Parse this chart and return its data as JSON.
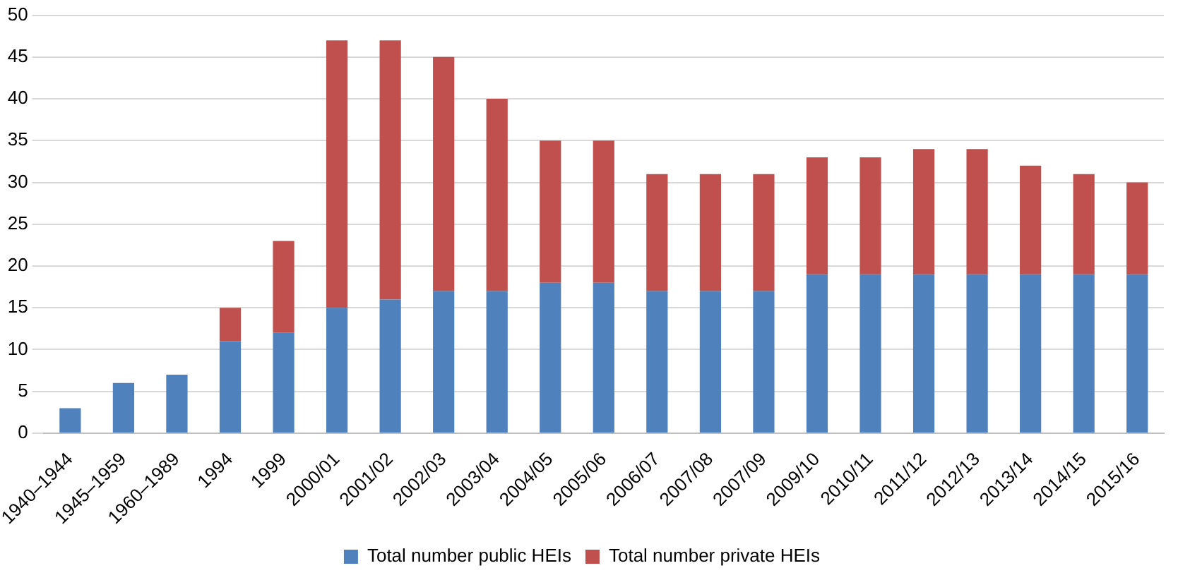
{
  "chart_data": {
    "type": "bar",
    "stacked": true,
    "categories": [
      "1940–1944",
      "1945–1959",
      "1960–1989",
      "1994",
      "1999",
      "2000/01",
      "2001/02",
      "2002/03",
      "2003/04",
      "2004/05",
      "2005/06",
      "2006/07",
      "2007/08",
      "2007/09",
      "2009/10",
      "2010/11",
      "2011/12",
      "2012/13",
      "2013/14",
      "2014/15",
      "2015/16"
    ],
    "series": [
      {
        "name": "Total number public HEIs",
        "color": "#4f81bd",
        "values": [
          3,
          6,
          7,
          11,
          12,
          15,
          16,
          17,
          17,
          18,
          18,
          17,
          17,
          17,
          19,
          19,
          19,
          19,
          19,
          19,
          19
        ]
      },
      {
        "name": "Total number private HEIs",
        "color": "#c0504d",
        "values": [
          0,
          0,
          0,
          4,
          11,
          32,
          31,
          28,
          23,
          17,
          17,
          14,
          14,
          14,
          14,
          14,
          15,
          15,
          13,
          12,
          11
        ]
      }
    ],
    "ylim": [
      0,
      50
    ],
    "yticks": [
      0,
      5,
      10,
      15,
      20,
      25,
      30,
      35,
      40,
      45,
      50
    ],
    "grid": "y",
    "legend": "bottom"
  }
}
